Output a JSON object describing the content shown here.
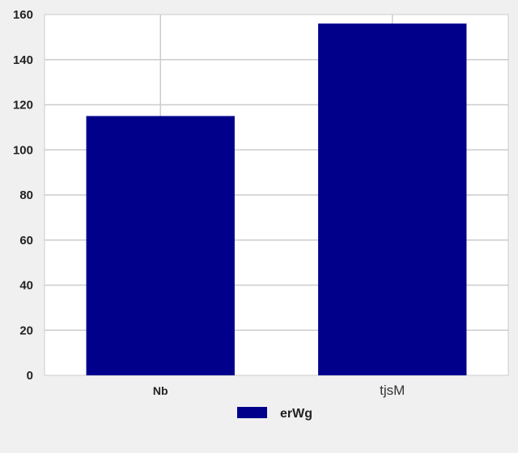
{
  "chart_data": {
    "type": "bar",
    "categories": [
      "Nb",
      "tjsM"
    ],
    "series": [
      {
        "name": "erWg",
        "values": [
          115,
          156
        ],
        "color": "#00008b"
      }
    ],
    "ylim": [
      0,
      160
    ],
    "yticks": [
      0,
      20,
      40,
      60,
      80,
      100,
      120,
      140,
      160
    ],
    "xlabel": "",
    "ylabel": "",
    "title": "",
    "grid": true,
    "legend_position": "bottom-center",
    "colors": {
      "background": "#f0f0f0",
      "plot_area": "#ffffff",
      "grid": "#cccccc",
      "bar": "#00008b"
    }
  }
}
